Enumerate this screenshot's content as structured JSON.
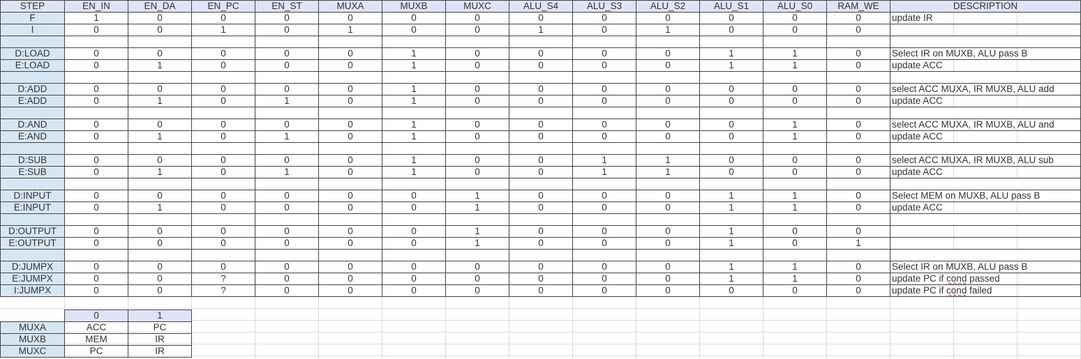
{
  "columns": [
    "STEP",
    "EN_IN",
    "EN_DA",
    "EN_PC",
    "EN_ST",
    "MUXA",
    "MUXB",
    "MUXC",
    "ALU_S4",
    "ALU_S3",
    "ALU_S2",
    "ALU_S1",
    "ALU_S0",
    "RAM_WE",
    "DESCRIPTION"
  ],
  "rows": [
    {
      "step": "F",
      "vals": [
        "1",
        "0",
        "0",
        "0",
        "0",
        "0",
        "0",
        "0",
        "0",
        "0",
        "0",
        "0",
        "0"
      ],
      "desc": "update IR"
    },
    {
      "step": "I",
      "vals": [
        "0",
        "0",
        "1",
        "0",
        "1",
        "0",
        "0",
        "1",
        "0",
        "1",
        "0",
        "0",
        "0"
      ],
      "desc": ""
    },
    {
      "step": "",
      "vals": [
        "",
        "",
        "",
        "",
        "",
        "",
        "",
        "",
        "",
        "",
        "",
        "",
        ""
      ],
      "desc": "",
      "blank": true
    },
    {
      "step": "D:LOAD",
      "vals": [
        "0",
        "0",
        "0",
        "0",
        "0",
        "1",
        "0",
        "0",
        "0",
        "0",
        "1",
        "1",
        "0"
      ],
      "desc": "Select IR on MUXB,  ALU pass B"
    },
    {
      "step": "E:LOAD",
      "vals": [
        "0",
        "1",
        "0",
        "0",
        "0",
        "1",
        "0",
        "0",
        "0",
        "0",
        "1",
        "1",
        "0"
      ],
      "desc": "update ACC"
    },
    {
      "step": "",
      "vals": [
        "",
        "",
        "",
        "",
        "",
        "",
        "",
        "",
        "",
        "",
        "",
        "",
        ""
      ],
      "desc": "",
      "blank": true
    },
    {
      "step": "D:ADD",
      "vals": [
        "0",
        "0",
        "0",
        "0",
        "0",
        "1",
        "0",
        "0",
        "0",
        "0",
        "0",
        "0",
        "0"
      ],
      "desc": "select ACC MUXA, IR MUXB, ALU add"
    },
    {
      "step": "E:ADD",
      "vals": [
        "0",
        "1",
        "0",
        "1",
        "0",
        "1",
        "0",
        "0",
        "0",
        "0",
        "0",
        "0",
        "0"
      ],
      "desc": "update ACC"
    },
    {
      "step": "",
      "vals": [
        "",
        "",
        "",
        "",
        "",
        "",
        "",
        "",
        "",
        "",
        "",
        "",
        ""
      ],
      "desc": "",
      "blank": true
    },
    {
      "step": "D:AND",
      "vals": [
        "0",
        "0",
        "0",
        "0",
        "0",
        "1",
        "0",
        "0",
        "0",
        "0",
        "0",
        "1",
        "0"
      ],
      "desc": "select ACC MUXA, IR MUXB, ALU and"
    },
    {
      "step": "E:AND",
      "vals": [
        "0",
        "1",
        "0",
        "1",
        "0",
        "1",
        "0",
        "0",
        "0",
        "0",
        "0",
        "1",
        "0"
      ],
      "desc": "update ACC"
    },
    {
      "step": "",
      "vals": [
        "",
        "",
        "",
        "",
        "",
        "",
        "",
        "",
        "",
        "",
        "",
        "",
        ""
      ],
      "desc": "",
      "blank": true
    },
    {
      "step": "D:SUB",
      "vals": [
        "0",
        "0",
        "0",
        "0",
        "0",
        "1",
        "0",
        "0",
        "1",
        "1",
        "0",
        "0",
        "0"
      ],
      "desc": "select ACC MUXA, IR MUXB, ALU sub"
    },
    {
      "step": "E:SUB",
      "vals": [
        "0",
        "1",
        "0",
        "1",
        "0",
        "1",
        "0",
        "0",
        "1",
        "1",
        "0",
        "0",
        "0"
      ],
      "desc": "update ACC"
    },
    {
      "step": "",
      "vals": [
        "",
        "",
        "",
        "",
        "",
        "",
        "",
        "",
        "",
        "",
        "",
        "",
        ""
      ],
      "desc": "",
      "blank": true
    },
    {
      "step": "D:INPUT",
      "vals": [
        "0",
        "0",
        "0",
        "0",
        "0",
        "0",
        "1",
        "0",
        "0",
        "0",
        "1",
        "1",
        "0"
      ],
      "desc": "Select MEM on MUXB,  ALU pass B"
    },
    {
      "step": "E:INPUT",
      "vals": [
        "0",
        "1",
        "0",
        "0",
        "0",
        "0",
        "1",
        "0",
        "0",
        "0",
        "1",
        "1",
        "0"
      ],
      "desc": "update ACC"
    },
    {
      "step": "",
      "vals": [
        "",
        "",
        "",
        "",
        "",
        "",
        "",
        "",
        "",
        "",
        "",
        "",
        ""
      ],
      "desc": "",
      "blank": true
    },
    {
      "step": "D:OUTPUT",
      "vals": [
        "0",
        "0",
        "0",
        "0",
        "0",
        "0",
        "1",
        "0",
        "0",
        "0",
        "1",
        "0",
        "0"
      ],
      "desc": ""
    },
    {
      "step": "E:OUTPUT",
      "vals": [
        "0",
        "0",
        "0",
        "0",
        "0",
        "0",
        "1",
        "0",
        "0",
        "0",
        "1",
        "0",
        "1"
      ],
      "desc": ""
    },
    {
      "step": "",
      "vals": [
        "",
        "",
        "",
        "",
        "",
        "",
        "",
        "",
        "",
        "",
        "",
        "",
        ""
      ],
      "desc": "",
      "blank": true
    },
    {
      "step": "D:JUMPX",
      "vals": [
        "0",
        "0",
        "0",
        "0",
        "0",
        "0",
        "0",
        "0",
        "0",
        "0",
        "1",
        "1",
        "0"
      ],
      "desc": "Select IR on MUXB,  ALU pass B"
    },
    {
      "step": "E:JUMPX",
      "vals": [
        "0",
        "0",
        "?",
        "0",
        "0",
        "0",
        "0",
        "0",
        "0",
        "0",
        "1",
        "1",
        "0"
      ],
      "desc_parts": [
        "update PC if ",
        "cond",
        " passed"
      ]
    },
    {
      "step": "I:JUMPX",
      "vals": [
        "0",
        "0",
        "?",
        "0",
        "0",
        "0",
        "0",
        "0",
        "0",
        "0",
        "0",
        "0",
        "0"
      ],
      "desc_parts": [
        "update PC if ",
        "cond",
        " failed"
      ]
    }
  ],
  "mux_table": {
    "headers": [
      "0",
      "1"
    ],
    "rows": [
      {
        "name": "MUXA",
        "vals": [
          "ACC",
          "PC"
        ]
      },
      {
        "name": "MUXB",
        "vals": [
          "MEM",
          "IR"
        ]
      },
      {
        "name": "MUXC",
        "vals": [
          "PC",
          "IR"
        ]
      }
    ]
  },
  "colors": {
    "header_bg": "#dfe3f6",
    "step_bg": "#d6e6f3",
    "grid": "#dadada",
    "spell_underline": "#d42020"
  }
}
